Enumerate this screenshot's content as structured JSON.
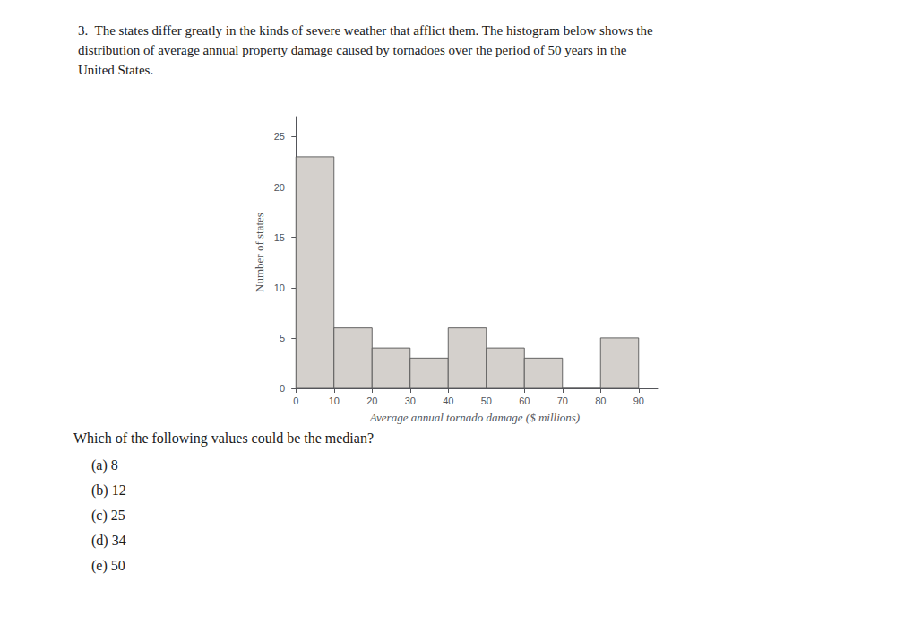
{
  "chart_data": {
    "type": "histogram",
    "title": [
      "3.  The states differ greatly in the kinds of severe weather that afflict them. The histogram below shows the",
      "distribution of average annual property damage caused by tornadoes over the period of 50 years in the",
      "United States."
    ],
    "xlabel": "Average annual tornado damage ($ millions)",
    "ylabel": "Number of states",
    "bins": [
      0,
      10,
      20,
      30,
      40,
      50,
      60,
      70,
      80,
      90
    ],
    "values": [
      23,
      6,
      4,
      3,
      6,
      4,
      3,
      0,
      5
    ],
    "color": "#d4d0cc",
    "xlim": [
      -1,
      95
    ],
    "xticks": [
      0,
      10,
      20,
      30,
      40,
      50,
      60,
      70,
      80,
      90
    ],
    "ylim": [
      0,
      27
    ],
    "yticks": [
      0,
      5,
      10,
      15,
      20,
      25
    ],
    "grid": false,
    "annotations": [
      "Which of the following values could be the median?",
      "(a) 8",
      "(b) 12",
      "(c) 25",
      "(d) 34",
      "(e) 50"
    ]
  }
}
